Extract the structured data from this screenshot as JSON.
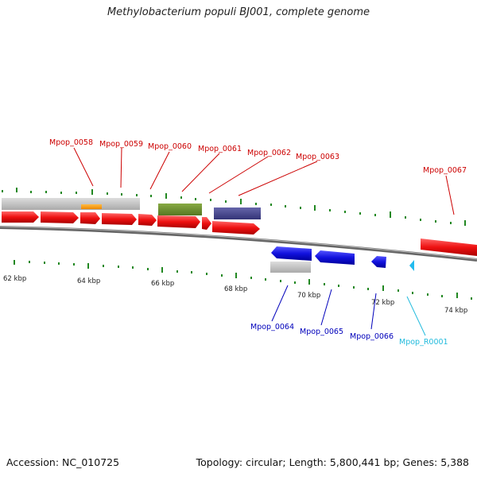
{
  "title": "Methylobacterium populi BJ001, complete genome",
  "footer": {
    "accession": "Accession: NC_010725",
    "info": "Topology: circular; Length: 5,800,441 bp; Genes: 5,388"
  },
  "colors": {
    "forward_gene": "#ee1111",
    "reverse_gene": "#1111dd",
    "rna": "#22bbee",
    "tick": "#228822",
    "backbone": "#777777",
    "label_forward": "#cc0000",
    "label_reverse": "#0000bb",
    "label_rna": "#22bbdd"
  },
  "scale_labels": [
    "62 kbp",
    "64 kbp",
    "66 kbp",
    "68 kbp",
    "70 kbp",
    "72 kbp",
    "74 kbp"
  ],
  "gene_labels": [
    {
      "text": "Mpop_0058",
      "strand": "forward"
    },
    {
      "text": "Mpop_0059",
      "strand": "forward"
    },
    {
      "text": "Mpop_0060",
      "strand": "forward"
    },
    {
      "text": "Mpop_0061",
      "strand": "forward"
    },
    {
      "text": "Mpop_0062",
      "strand": "forward"
    },
    {
      "text": "Mpop_0063",
      "strand": "forward"
    },
    {
      "text": "Mpop_0067",
      "strand": "forward"
    },
    {
      "text": "Mpop_0064",
      "strand": "reverse"
    },
    {
      "text": "Mpop_0065",
      "strand": "reverse"
    },
    {
      "text": "Mpop_0066",
      "strand": "reverse"
    },
    {
      "text": "Mpop_R0001",
      "strand": "rna"
    }
  ]
}
